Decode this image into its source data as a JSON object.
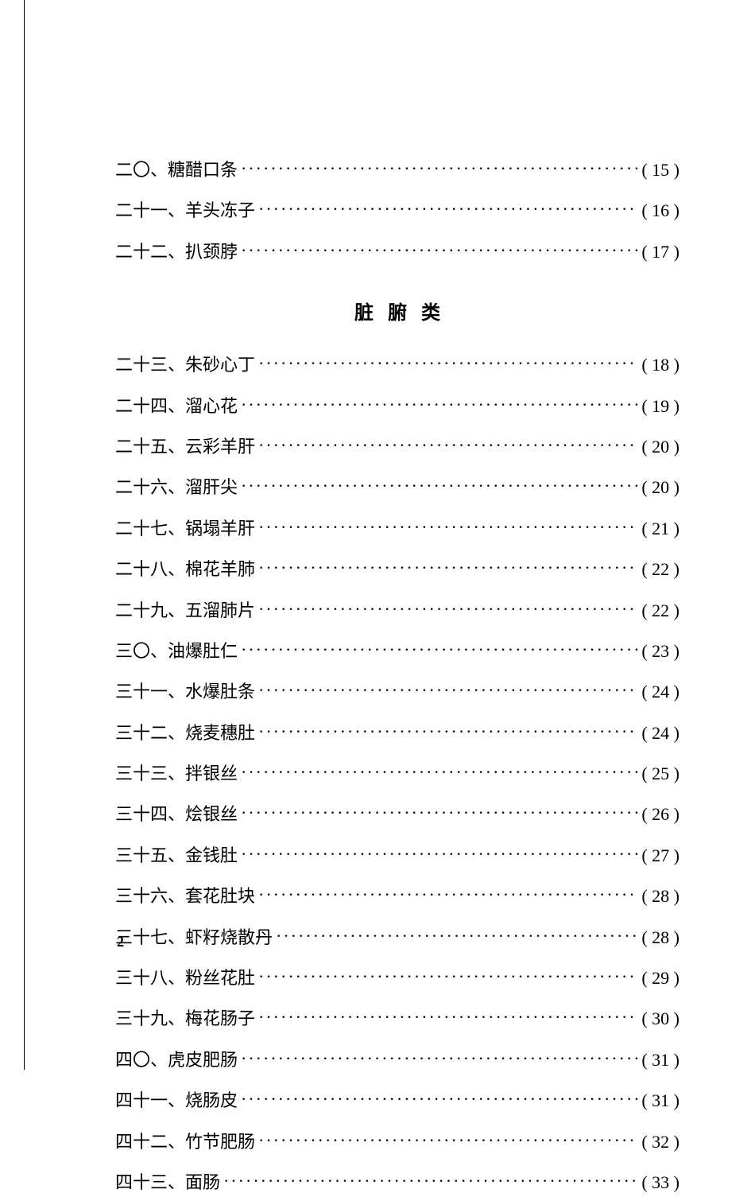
{
  "section_heading": "脏腑类",
  "page_number": "2",
  "entries_top": [
    {
      "label": "二〇、糖醋口条",
      "page": "( 15 )"
    },
    {
      "label": "二十一、羊头冻子",
      "page": "( 16 )"
    },
    {
      "label": "二十二、扒颈脖",
      "page": "( 17 )"
    }
  ],
  "entries_main": [
    {
      "label": "二十三、朱砂心丁",
      "page": "( 18 )"
    },
    {
      "label": "二十四、溜心花",
      "page": "( 19 )"
    },
    {
      "label": "二十五、云彩羊肝",
      "page": "( 20 )"
    },
    {
      "label": "二十六、溜肝尖",
      "page": "( 20 )"
    },
    {
      "label": "二十七、锅塌羊肝",
      "page": "( 21 )"
    },
    {
      "label": "二十八、棉花羊肺",
      "page": "( 22 )"
    },
    {
      "label": "二十九、五溜肺片",
      "page": "( 22 )"
    },
    {
      "label": "三〇、油爆肚仁",
      "page": "( 23 )"
    },
    {
      "label": "三十一、水爆肚条",
      "page": "( 24 )"
    },
    {
      "label": "三十二、烧麦穗肚",
      "page": "( 24 )"
    },
    {
      "label": "三十三、拌银丝",
      "page": "( 25 )"
    },
    {
      "label": "三十四、烩银丝",
      "page": "( 26 )"
    },
    {
      "label": "三十五、金钱肚",
      "page": "( 27 )"
    },
    {
      "label": "三十六、套花肚块",
      "page": "( 28 )"
    },
    {
      "label": "三十七、虾籽烧散丹",
      "page": "( 28 )"
    },
    {
      "label": "三十八、粉丝花肚",
      "page": "( 29 )"
    },
    {
      "label": "三十九、梅花肠子",
      "page": "( 30 )"
    },
    {
      "label": "四〇、虎皮肥肠",
      "page": "( 31 )"
    },
    {
      "label": "四十一、烧肠皮",
      "page": "( 31 )"
    },
    {
      "label": "四十二、竹节肥肠",
      "page": "( 32 )"
    },
    {
      "label": "四十三、面肠",
      "page": "( 33 )"
    }
  ]
}
